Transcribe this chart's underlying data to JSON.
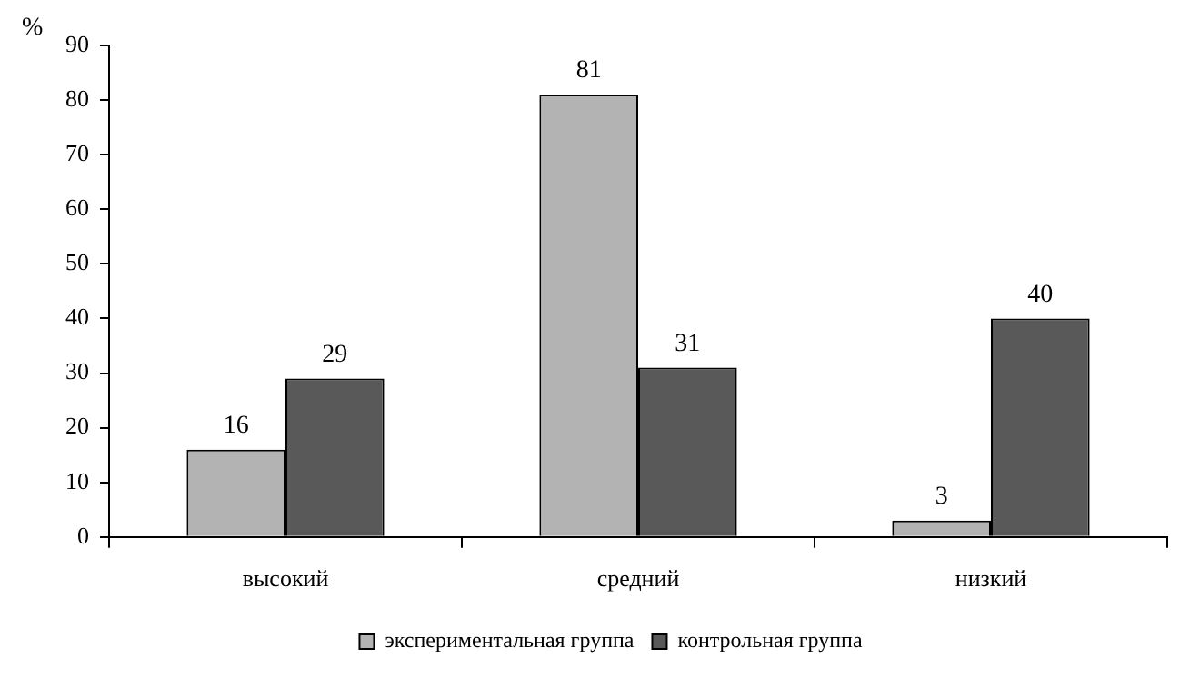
{
  "chart_data": {
    "type": "bar",
    "ylabel": "%",
    "categories": [
      "высокий",
      "средний",
      "низкий"
    ],
    "series": [
      {
        "name": "экспериментальная группа",
        "color": "#b3b3b3",
        "values": [
          16,
          81,
          3
        ]
      },
      {
        "name": "контрольная группа",
        "color": "#595959",
        "values": [
          29,
          31,
          40
        ]
      }
    ],
    "ylim": [
      0,
      90
    ],
    "yticks": [
      0,
      10,
      20,
      30,
      40,
      50,
      60,
      70,
      80,
      90
    ],
    "grid": false,
    "legend": "bottom",
    "data_labels": true
  }
}
